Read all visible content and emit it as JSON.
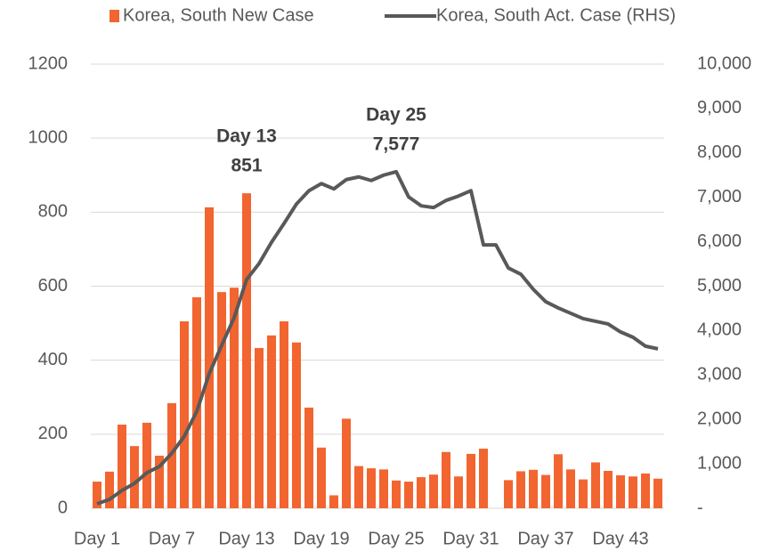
{
  "chart_data": {
    "type": "bar_line",
    "categories": [
      "Day 1",
      null,
      null,
      null,
      null,
      null,
      "Day 7",
      null,
      null,
      null,
      null,
      null,
      "Day 13",
      null,
      null,
      null,
      null,
      null,
      "Day 19",
      null,
      null,
      null,
      null,
      null,
      "Day 25",
      null,
      null,
      null,
      null,
      null,
      "Day 31",
      null,
      null,
      null,
      null,
      null,
      "Day 37",
      null,
      null,
      null,
      null,
      null,
      "Day 43",
      null,
      null,
      null
    ],
    "series": [
      {
        "name": "Korea, South New Case",
        "type": "bar",
        "color": "#f26530",
        "values": [
          72,
          99,
          226,
          168,
          231,
          142,
          284,
          505,
          570,
          813,
          584,
          596,
          851,
          433,
          467,
          505,
          448,
          272,
          164,
          35,
          242,
          114,
          108,
          105,
          75,
          72,
          84,
          91,
          152,
          86,
          147,
          161,
          0,
          76,
          100,
          104,
          90,
          146,
          105,
          78,
          124,
          101,
          89,
          86,
          94,
          80
        ]
      },
      {
        "name": "Korea, South Act. Case (RHS)",
        "type": "line",
        "axis": "y2",
        "color": "#595959",
        "values": [
          100,
          200,
          400,
          560,
          800,
          940,
          1240,
          1620,
          2180,
          3030,
          3670,
          4290,
          5150,
          5510,
          5990,
          6410,
          6850,
          7150,
          7310,
          7190,
          7400,
          7460,
          7380,
          7500,
          7577,
          7010,
          6810,
          6770,
          6930,
          7030,
          7150,
          5930,
          5930,
          5410,
          5270,
          4930,
          4650,
          4510,
          4390,
          4270,
          4210,
          4150,
          3970,
          3850,
          3650,
          3590
        ]
      }
    ],
    "ylim": [
      0,
      1200
    ],
    "yticks": [
      0,
      200,
      400,
      600,
      800,
      1000,
      1200
    ],
    "y2lim": [
      0,
      10000
    ],
    "y2ticks": [
      {
        "value": 0,
        "label": "-"
      },
      {
        "value": 1000,
        "label": "1,000"
      },
      {
        "value": 2000,
        "label": "2,000"
      },
      {
        "value": 3000,
        "label": "3,000"
      },
      {
        "value": 4000,
        "label": "4,000"
      },
      {
        "value": 5000,
        "label": "5,000"
      },
      {
        "value": 6000,
        "label": "6,000"
      },
      {
        "value": 7000,
        "label": "7,000"
      },
      {
        "value": 8000,
        "label": "8,000"
      },
      {
        "value": 9000,
        "label": "9,000"
      },
      {
        "value": 10000,
        "label": "10,000"
      }
    ],
    "grid": true,
    "legend": "top",
    "annotations": [
      {
        "lines": [
          "Day 13",
          "851"
        ],
        "index": 12,
        "series": 0
      },
      {
        "lines": [
          "Day 25",
          "7,577"
        ],
        "index": 24,
        "series": 1
      }
    ]
  }
}
